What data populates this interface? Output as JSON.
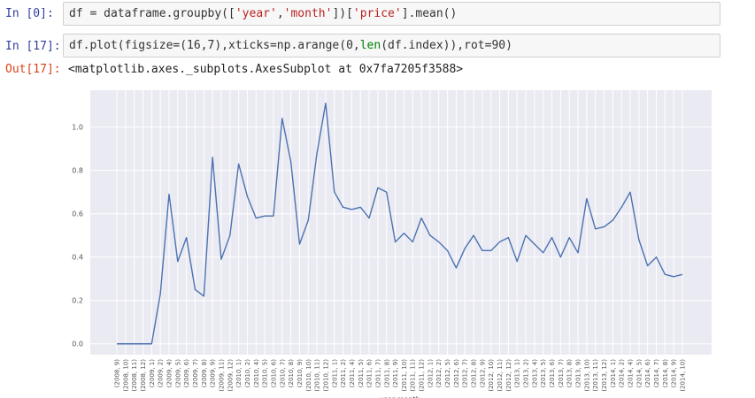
{
  "cells": [
    {
      "prompt": "In [0]:",
      "code_pre": "df = dataframe.groupby([",
      "s1": "'year'",
      "c1": ",",
      "s2": "'month'",
      "c2": "])[",
      "s3": "'price'",
      "c3": "].mean()"
    },
    {
      "prompt": "In [17]:",
      "code_pre": "df.plot(figsize=(16,7),xticks=np.arange(0,",
      "b1": "len",
      "code_post": "(df.index)),rot=90)"
    }
  ],
  "output": {
    "prompt": "Out[17]:",
    "text": "<matplotlib.axes._subplots.AxesSubplot at 0x7fa7205f3588>"
  },
  "chart_data": {
    "type": "line",
    "title": "",
    "xlabel": "year,month",
    "ylabel": "",
    "ylim": [
      -0.05,
      1.17
    ],
    "yticks": [
      0.0,
      0.2,
      0.4,
      0.6,
      0.8,
      1.0
    ],
    "ytick_labels": [
      "0.0",
      "0.2",
      "0.4",
      "0.6",
      "0.8",
      "1.0"
    ],
    "grid": true,
    "background": "#eaeaf2",
    "line_color": "#4c72b0",
    "categories": [
      "(2008, 9)",
      "(2008, 10)",
      "(2008, 11)",
      "(2008, 12)",
      "(2009, 1)",
      "(2009, 2)",
      "(2009, 4)",
      "(2009, 5)",
      "(2009, 6)",
      "(2009, 7)",
      "(2009, 8)",
      "(2009, 9)",
      "(2009, 11)",
      "(2009, 12)",
      "(2010, 1)",
      "(2010, 2)",
      "(2010, 4)",
      "(2010, 5)",
      "(2010, 6)",
      "(2010, 7)",
      "(2010, 8)",
      "(2010, 9)",
      "(2010, 10)",
      "(2010, 11)",
      "(2010, 12)",
      "(2011, 1)",
      "(2011, 2)",
      "(2011, 4)",
      "(2011, 5)",
      "(2011, 6)",
      "(2011, 7)",
      "(2011, 8)",
      "(2011, 9)",
      "(2011, 10)",
      "(2011, 11)",
      "(2011, 12)",
      "(2012, 1)",
      "(2012, 2)",
      "(2012, 5)",
      "(2012, 6)",
      "(2012, 7)",
      "(2012, 8)",
      "(2012, 9)",
      "(2012, 10)",
      "(2012, 11)",
      "(2012, 12)",
      "(2013, 1)",
      "(2013, 2)",
      "(2013, 4)",
      "(2013, 5)",
      "(2013, 6)",
      "(2013, 7)",
      "(2013, 8)",
      "(2013, 9)",
      "(2013, 10)",
      "(2013, 11)",
      "(2013, 12)",
      "(2014, 1)",
      "(2014, 2)",
      "(2014, 4)",
      "(2014, 5)",
      "(2014, 6)",
      "(2014, 7)",
      "(2014, 8)",
      "(2014, 9)",
      "(2014, 10)"
    ],
    "values": [
      0.0,
      0.0,
      0.0,
      0.0,
      0.0,
      0.23,
      0.69,
      0.38,
      0.49,
      0.25,
      0.22,
      0.86,
      0.39,
      0.5,
      0.83,
      0.68,
      0.58,
      0.59,
      0.59,
      1.04,
      0.84,
      0.46,
      0.57,
      0.88,
      1.11,
      0.7,
      0.63,
      0.62,
      0.63,
      0.58,
      0.72,
      0.7,
      0.47,
      0.51,
      0.47,
      0.58,
      0.5,
      0.47,
      0.43,
      0.35,
      0.44,
      0.5,
      0.43,
      0.43,
      0.47,
      0.49,
      0.38,
      0.5,
      0.46,
      0.42,
      0.49,
      0.4,
      0.49,
      0.42,
      0.67,
      0.53,
      0.54,
      0.57,
      0.63,
      0.7,
      0.48,
      0.36,
      0.4,
      0.32,
      0.31,
      0.32
    ]
  }
}
